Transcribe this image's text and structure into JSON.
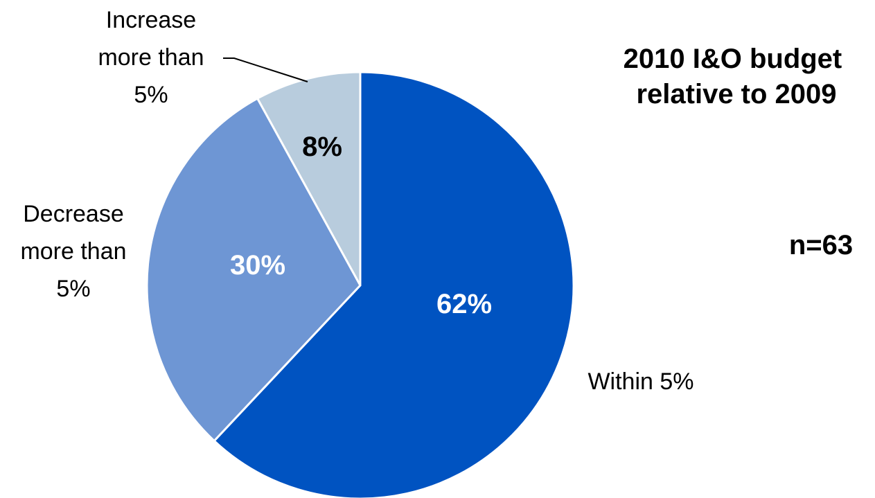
{
  "chart_data": {
    "type": "pie",
    "title_lines": [
      "2010 I&O budget",
      "relative to 2009"
    ],
    "note": "n=63",
    "slices": [
      {
        "label_lines": [
          "Within 5%"
        ],
        "value": 62,
        "value_label": "62%",
        "color": "#0053C1",
        "value_label_color": "#ffffff"
      },
      {
        "label_lines": [
          "Decrease",
          "more than",
          "5%"
        ],
        "value": 30,
        "value_label": "30%",
        "color": "#6E96D4",
        "value_label_color": "#ffffff"
      },
      {
        "label_lines": [
          "Increase",
          "more than",
          "5%"
        ],
        "value": 8,
        "value_label": "8%",
        "color": "#B8CCDD",
        "value_label_color": "#000000"
      }
    ],
    "start_angle_deg": 0,
    "direction": "clockwise",
    "leader_line_color": "#000000",
    "slice_border_color": "#ffffff"
  }
}
